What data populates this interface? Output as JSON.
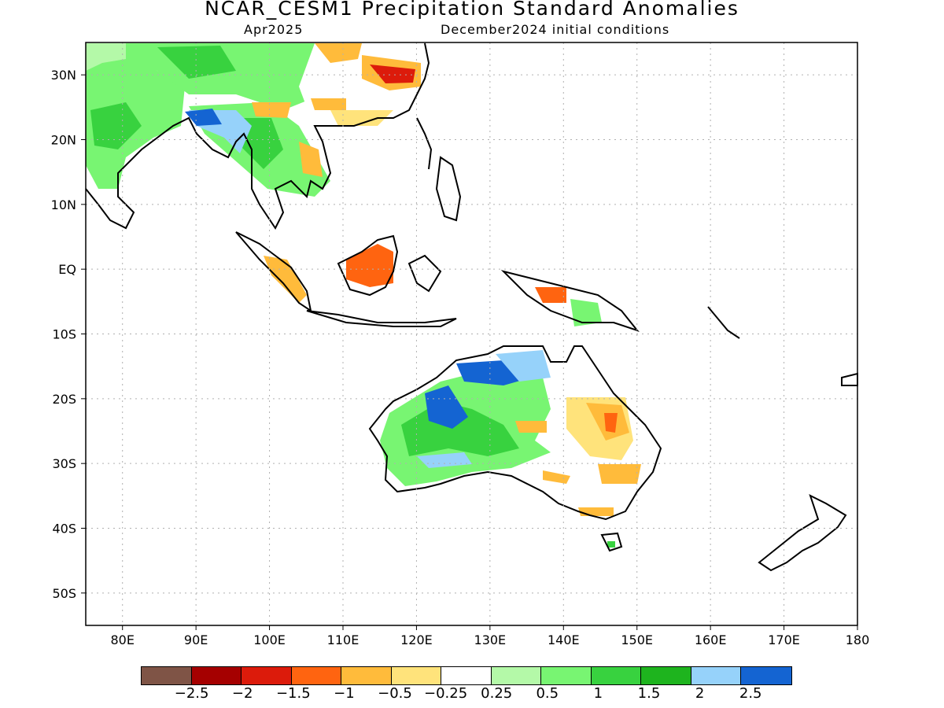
{
  "title": "NCAR_CESM1 Precipitation Standard Anomalies",
  "subtitle_left": "Apr2025",
  "subtitle_right": "December2024 initial conditions",
  "map": {
    "lon_range": [
      75,
      180
    ],
    "lat_range": [
      -55,
      35
    ],
    "lat_labels": [
      "30N",
      "20N",
      "10N",
      "EQ",
      "10S",
      "20S",
      "30S",
      "40S",
      "50S"
    ],
    "lat_values": [
      30,
      20,
      10,
      0,
      -10,
      -20,
      -30,
      -40,
      -50
    ],
    "lon_labels": [
      "80E",
      "90E",
      "100E",
      "110E",
      "120E",
      "130E",
      "140E",
      "150E",
      "160E",
      "170E",
      "180"
    ],
    "lon_values": [
      80,
      90,
      100,
      110,
      120,
      130,
      140,
      150,
      160,
      170,
      180
    ],
    "grid": true
  },
  "colorbar": {
    "colors": [
      "#7f5446",
      "#a50000",
      "#dc1b0b",
      "#ff6410",
      "#ffbb3b",
      "#ffe37b",
      "#ffffff",
      "#b4f9a8",
      "#78f572",
      "#38d23f",
      "#1eb41e",
      "#96d2fa",
      "#1464d2"
    ],
    "labels": [
      "−2.5",
      "−2",
      "−1.5",
      "−1",
      "−0.5",
      "−0.25",
      "0.25",
      "0.5",
      "1",
      "1.5",
      "2",
      "2.5"
    ]
  }
}
